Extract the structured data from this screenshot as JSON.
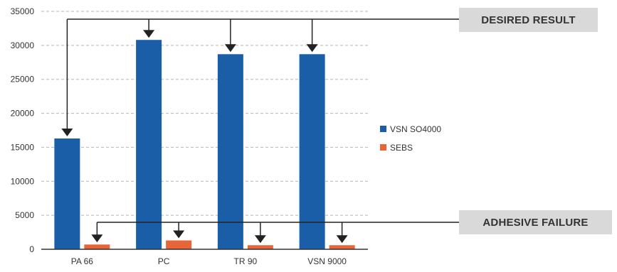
{
  "chart_data": {
    "type": "bar",
    "categories": [
      "PA 66",
      "PC",
      "TR 90",
      "VSN 9000"
    ],
    "series": [
      {
        "name": "VSN SO4000",
        "color": "#1a5ea8",
        "values": [
          16300,
          30800,
          28700,
          28700
        ]
      },
      {
        "name": "SEBS",
        "color": "#e8653a",
        "values": [
          700,
          1300,
          600,
          600
        ]
      }
    ],
    "ylim": [
      0,
      35000
    ],
    "yticks": [
      "0",
      "5000",
      "10000",
      "15000",
      "20000",
      "25000",
      "30000",
      "35000"
    ],
    "grid": true,
    "legend_placement": "right",
    "annotations": [
      {
        "text": "DESIRED RESULT",
        "points_to": "VSN SO4000"
      },
      {
        "text": "ADHESIVE FAILURE",
        "points_to": "SEBS"
      }
    ]
  }
}
